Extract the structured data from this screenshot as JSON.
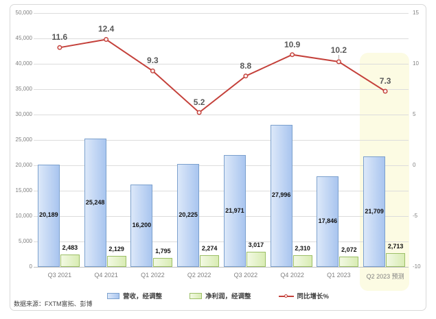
{
  "source_note": "数据来源：FXTM富拓、彭博",
  "chart_data": {
    "type": "combo-bar-line",
    "title": "",
    "categories": [
      "Q3 2021",
      "Q4 2021",
      "Q1 2022",
      "Q2 2022",
      "Q3 2022",
      "Q4 2022",
      "Q1 2023",
      "Q2 2023 预测"
    ],
    "series": [
      {
        "name": "营收，经调整",
        "type": "bar",
        "axis": "left",
        "values": [
          20189,
          25248,
          16200,
          20225,
          21971,
          27996,
          17846,
          21709
        ],
        "labels": [
          "20,189",
          "25,248",
          "16,200",
          "20,225",
          "21,971",
          "27,996",
          "17,846",
          "21,709"
        ],
        "fill_light": "#DCE8F9",
        "fill_dark": "#A9C5EF",
        "border": "#7BA0CD"
      },
      {
        "name": "净利润，经调整",
        "type": "bar",
        "axis": "left",
        "values": [
          2483,
          2129,
          1795,
          2274,
          3017,
          2310,
          2072,
          2713
        ],
        "labels": [
          "2,483",
          "2,129",
          "1,795",
          "2,274",
          "3,017",
          "2,310",
          "2,072",
          "2,713"
        ],
        "fill_light": "#F2F9E3",
        "fill_dark": "#D9ECB4",
        "border": "#9CBF66"
      },
      {
        "name": "同比增长%",
        "type": "line",
        "axis": "right",
        "values": [
          11.6,
          12.4,
          9.3,
          5.2,
          8.8,
          10.9,
          10.2,
          7.3
        ],
        "labels": [
          "11.6",
          "12.4",
          "9.3",
          "5.2",
          "8.8",
          "10.9",
          "10.2",
          "7.3"
        ],
        "color": "#C4403A",
        "marker_fill": "#FBEFEE",
        "label_leader_category": "Q1 2023"
      }
    ],
    "left_axis": {
      "min": 0,
      "max": 50000,
      "step": 5000,
      "tick_labels": [
        "50,000",
        "45,000",
        "40,000",
        "35,000",
        "30,000",
        "25,000",
        "20,000",
        "15,000",
        "10,000",
        "5,000",
        "0"
      ]
    },
    "right_axis": {
      "min": -10,
      "max": 15,
      "step": 5,
      "tick_labels": [
        "15",
        "10",
        "5",
        "0",
        "-5",
        "-10"
      ]
    },
    "forecast_region": {
      "category": "Q2 2023 预测",
      "color": "#FCFBE3"
    },
    "grid": true,
    "legend_position": "bottom",
    "colors": {
      "gridline": "#DCDCDC",
      "axis_line": "#BFBFBF",
      "axis_text": "#7F7F7F",
      "line_label_text": "#595959",
      "bar_label_text": "#111111"
    }
  }
}
